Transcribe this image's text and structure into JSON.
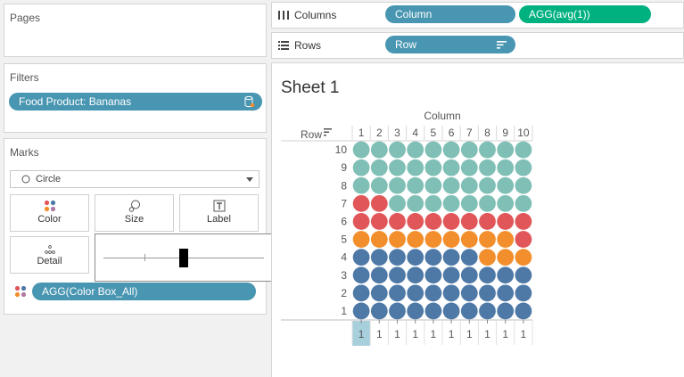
{
  "pages": {
    "title": "Pages"
  },
  "filters": {
    "title": "Filters",
    "pill": "Food Product: Bananas"
  },
  "marks": {
    "title": "Marks",
    "mark_type": "Circle",
    "buttons": {
      "color": "Color",
      "size": "Size",
      "label": "Label",
      "detail": "Detail"
    },
    "color_pill": "AGG(Color Box_All)"
  },
  "columns_shelf": {
    "label": "Columns",
    "pills": [
      "Column",
      "AGG(avg(1))"
    ]
  },
  "rows_shelf": {
    "label": "Rows",
    "pills": [
      "Row"
    ]
  },
  "sheet": {
    "title": "Sheet 1",
    "column_header": "Column",
    "row_header": "Row",
    "columns": [
      "1",
      "2",
      "3",
      "4",
      "5",
      "6",
      "7",
      "8",
      "9",
      "10"
    ],
    "rows": [
      "10",
      "9",
      "8",
      "7",
      "6",
      "5",
      "4",
      "3",
      "2",
      "1"
    ],
    "axis_values": [
      "1",
      "1",
      "1",
      "1",
      "1",
      "1",
      "1",
      "1",
      "1",
      "1"
    ],
    "colors": {
      "teal": "#7fbfb5",
      "red": "#e15759",
      "orange": "#f28e2b",
      "blue": "#4e79a7"
    },
    "matrix": [
      [
        "teal",
        "teal",
        "teal",
        "teal",
        "teal",
        "teal",
        "teal",
        "teal",
        "teal",
        "teal"
      ],
      [
        "teal",
        "teal",
        "teal",
        "teal",
        "teal",
        "teal",
        "teal",
        "teal",
        "teal",
        "teal"
      ],
      [
        "teal",
        "teal",
        "teal",
        "teal",
        "teal",
        "teal",
        "teal",
        "teal",
        "teal",
        "teal"
      ],
      [
        "red",
        "red",
        "teal",
        "teal",
        "teal",
        "teal",
        "teal",
        "teal",
        "teal",
        "teal"
      ],
      [
        "red",
        "red",
        "red",
        "red",
        "red",
        "red",
        "red",
        "red",
        "red",
        "red"
      ],
      [
        "orange",
        "orange",
        "orange",
        "orange",
        "orange",
        "orange",
        "orange",
        "orange",
        "orange",
        "red"
      ],
      [
        "blue",
        "blue",
        "blue",
        "blue",
        "blue",
        "blue",
        "blue",
        "orange",
        "orange",
        "orange"
      ],
      [
        "blue",
        "blue",
        "blue",
        "blue",
        "blue",
        "blue",
        "blue",
        "blue",
        "blue",
        "blue"
      ],
      [
        "blue",
        "blue",
        "blue",
        "blue",
        "blue",
        "blue",
        "blue",
        "blue",
        "blue",
        "blue"
      ],
      [
        "blue",
        "blue",
        "blue",
        "blue",
        "blue",
        "blue",
        "blue",
        "blue",
        "blue",
        "blue"
      ]
    ]
  }
}
